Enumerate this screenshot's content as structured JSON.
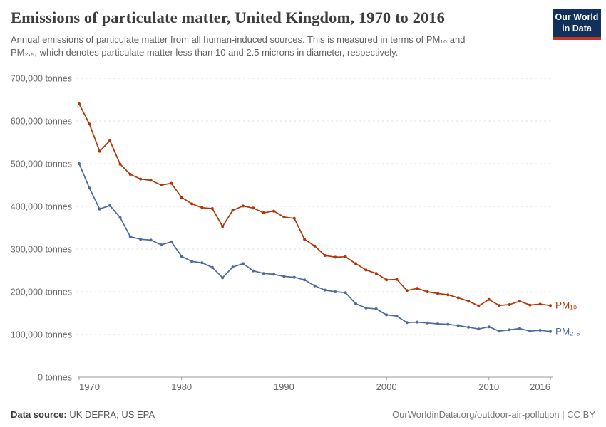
{
  "header": {
    "title": "Emissions of particulate matter, United Kingdom, 1970 to 2016",
    "subtitle_lines": [
      "Annual emissions of particulate matter from all human-induced sources. This is measured in terms of PM₁₀ and",
      "PM₂.₅, which denotes particulate matter less than 10 and 2.5 microns in diameter, respectively."
    ]
  },
  "logo": {
    "lines": [
      "Our World",
      "in Data"
    ],
    "bg_color": "#12305C",
    "stripe_color": "#C5352C"
  },
  "footer": {
    "source_label": "Data source:",
    "source_value": "UK DEFRA; US EPA",
    "link_text": "OurWorldinData.org/outdoor-air-pollution | CC BY"
  },
  "chart_data": {
    "type": "line",
    "title": "Emissions of particulate matter, United Kingdom, 1970 to 2016",
    "xlabel": "",
    "ylabel": "tonnes",
    "ylim": [
      0,
      700000
    ],
    "grid": "dashed-horizontal",
    "legend_position": "line-end-labels",
    "x": [
      1970,
      1971,
      1972,
      1973,
      1974,
      1975,
      1976,
      1977,
      1978,
      1979,
      1980,
      1981,
      1982,
      1983,
      1984,
      1985,
      1986,
      1987,
      1988,
      1989,
      1990,
      1991,
      1992,
      1993,
      1994,
      1995,
      1996,
      1997,
      1998,
      1999,
      2000,
      2001,
      2002,
      2003,
      2004,
      2005,
      2006,
      2007,
      2008,
      2009,
      2010,
      2011,
      2012,
      2013,
      2014,
      2015,
      2016
    ],
    "xticks": [
      1970,
      1980,
      1990,
      2000,
      2010,
      2016
    ],
    "yticks": [
      {
        "value": 0,
        "label": "0 tonnes"
      },
      {
        "value": 100000,
        "label": "100,000 tonnes"
      },
      {
        "value": 200000,
        "label": "200,000 tonnes"
      },
      {
        "value": 300000,
        "label": "300,000 tonnes"
      },
      {
        "value": 400000,
        "label": "400,000 tonnes"
      },
      {
        "value": 500000,
        "label": "500,000 tonnes"
      },
      {
        "value": 600000,
        "label": "600,000 tonnes"
      },
      {
        "value": 700000,
        "label": "700,000 tonnes"
      }
    ],
    "series": [
      {
        "name": "pm10",
        "label": "PM₁₀",
        "color": "#B13507",
        "values": [
          640000,
          593000,
          529000,
          554000,
          499000,
          475000,
          464000,
          461000,
          450000,
          454000,
          421000,
          406000,
          397000,
          395000,
          353000,
          391000,
          401000,
          396000,
          385000,
          389000,
          375000,
          372000,
          323000,
          307000,
          285000,
          281000,
          282000,
          266000,
          251000,
          243000,
          228000,
          229000,
          203000,
          208000,
          200000,
          196000,
          193000,
          186000,
          178000,
          167000,
          182000,
          168000,
          170000,
          178000,
          169000,
          171000,
          168000
        ]
      },
      {
        "name": "pm25",
        "label": "PM₂.₅",
        "color": "#4C6A9C",
        "values": [
          500000,
          443000,
          394000,
          402000,
          374000,
          329000,
          323000,
          321000,
          310000,
          317000,
          283000,
          271000,
          268000,
          257000,
          233000,
          258000,
          266000,
          249000,
          243000,
          241000,
          236000,
          234000,
          228000,
          214000,
          204000,
          200000,
          198000,
          172000,
          162000,
          160000,
          146000,
          143000,
          128000,
          129000,
          127000,
          125000,
          124000,
          121000,
          117000,
          113000,
          118000,
          108000,
          111000,
          114000,
          108000,
          110000,
          107000
        ]
      }
    ]
  }
}
